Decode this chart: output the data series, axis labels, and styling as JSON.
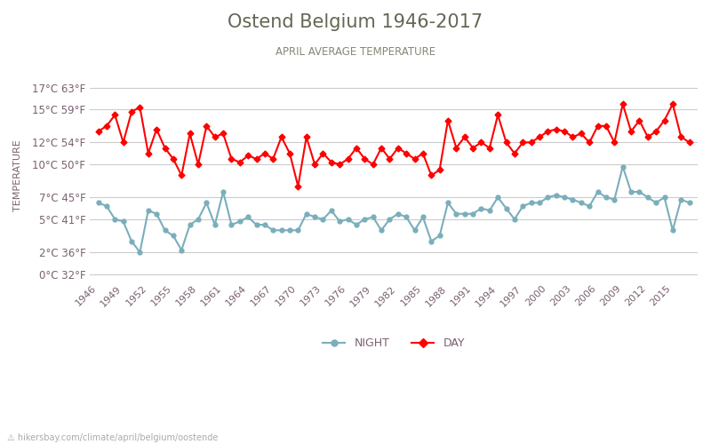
{
  "title": "Ostend Belgium 1946-2017",
  "subtitle": "APRIL AVERAGE TEMPERATURE",
  "ylabel": "TEMPERATURE",
  "footer": "hikersbay.com/climate/april/belgium/oostende",
  "title_color": "#666655",
  "subtitle_color": "#888877",
  "ylabel_color": "#7a6070",
  "tick_color": "#7a6070",
  "line_color_day": "#ff0000",
  "line_color_night": "#7aaebb",
  "marker_color_day": "#ff0000",
  "marker_color_night": "#7aaebb",
  "background_color": "#ffffff",
  "grid_color": "#cccccc",
  "years": [
    1946,
    1947,
    1948,
    1949,
    1950,
    1951,
    1952,
    1953,
    1954,
    1955,
    1956,
    1957,
    1958,
    1959,
    1960,
    1961,
    1962,
    1963,
    1964,
    1965,
    1966,
    1967,
    1968,
    1969,
    1970,
    1971,
    1972,
    1973,
    1974,
    1975,
    1976,
    1977,
    1978,
    1979,
    1980,
    1981,
    1982,
    1983,
    1984,
    1985,
    1986,
    1987,
    1988,
    1989,
    1990,
    1991,
    1992,
    1993,
    1994,
    1995,
    1996,
    1997,
    1998,
    1999,
    2000,
    2001,
    2002,
    2003,
    2004,
    2005,
    2006,
    2007,
    2008,
    2009,
    2010,
    2011,
    2012,
    2013,
    2014,
    2015,
    2016,
    2017
  ],
  "day_temps": [
    13.0,
    13.5,
    14.5,
    12.0,
    14.8,
    15.2,
    11.0,
    13.2,
    11.5,
    10.5,
    9.0,
    12.8,
    10.0,
    13.5,
    12.5,
    12.8,
    10.5,
    10.2,
    10.8,
    10.5,
    11.0,
    10.5,
    12.5,
    11.0,
    8.0,
    12.5,
    10.0,
    11.0,
    10.2,
    10.0,
    10.5,
    11.5,
    10.5,
    10.0,
    11.5,
    10.5,
    11.5,
    11.0,
    10.5,
    11.0,
    9.0,
    9.5,
    14.0,
    11.5,
    12.5,
    11.5,
    12.0,
    11.5,
    14.5,
    12.0,
    11.0,
    12.0,
    12.0,
    12.5,
    13.0,
    13.2,
    13.0,
    12.5,
    12.8,
    12.0,
    13.5,
    13.5,
    12.0,
    15.5,
    13.0,
    14.0,
    12.5,
    13.0,
    14.0,
    15.5,
    12.5,
    12.0
  ],
  "night_temps": [
    6.5,
    6.2,
    5.0,
    4.8,
    3.0,
    2.0,
    5.8,
    5.5,
    4.0,
    3.5,
    2.2,
    4.5,
    5.0,
    6.5,
    4.5,
    7.5,
    4.5,
    4.8,
    5.2,
    4.5,
    4.5,
    4.0,
    4.0,
    4.0,
    4.0,
    5.5,
    5.2,
    5.0,
    5.8,
    4.8,
    5.0,
    4.5,
    5.0,
    5.2,
    4.0,
    5.0,
    5.5,
    5.2,
    4.0,
    5.2,
    3.0,
    3.5,
    6.5,
    5.5,
    5.5,
    5.5,
    6.0,
    5.8,
    7.0,
    6.0,
    5.0,
    6.2,
    6.5,
    6.5,
    7.0,
    7.2,
    7.0,
    6.8,
    6.5,
    6.2,
    7.5,
    7.0,
    6.8,
    9.8,
    7.5,
    7.5,
    7.0,
    6.5,
    7.0,
    4.0,
    6.8,
    6.5
  ],
  "yticks_c": [
    0,
    2,
    5,
    7,
    10,
    12,
    15,
    17
  ],
  "yticks_f": [
    32,
    36,
    41,
    45,
    50,
    54,
    59,
    63
  ],
  "ylim": [
    -0.5,
    18.5
  ],
  "xtick_years": [
    1946,
    1949,
    1952,
    1955,
    1958,
    1961,
    1964,
    1967,
    1970,
    1973,
    1976,
    1979,
    1982,
    1985,
    1988,
    1991,
    1994,
    1997,
    2000,
    2003,
    2006,
    2009,
    2012,
    2015
  ]
}
